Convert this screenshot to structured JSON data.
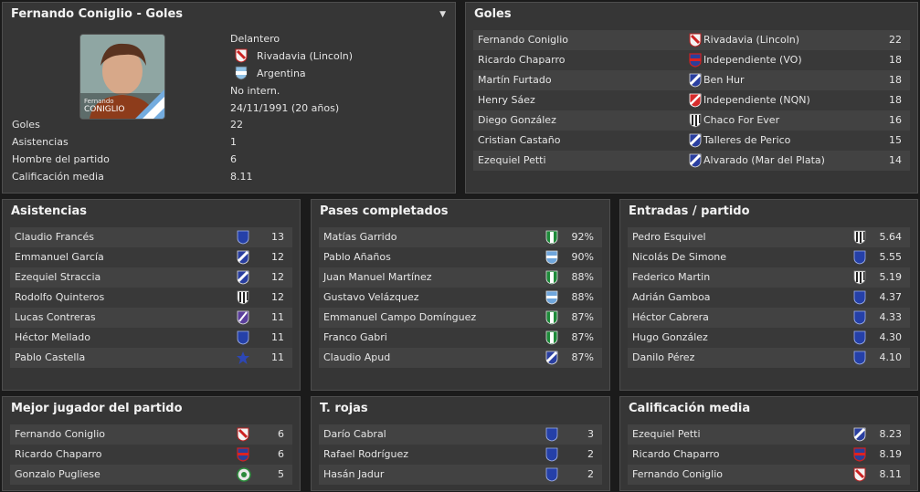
{
  "profile": {
    "title": "Fernando Coniglio - Goles",
    "photo_caption_1": "Fernando",
    "photo_caption_2": "CONIGLIO",
    "position": "Delantero",
    "club": "Rivadavia (Lincoln)",
    "nation": "Argentina",
    "intl": "No intern.",
    "dob": "24/11/1991 (20 años)",
    "stats": [
      {
        "label": "Goles",
        "value": "22"
      },
      {
        "label": "Asistencias",
        "value": "1"
      },
      {
        "label": "Hombre del partido",
        "value": "6"
      },
      {
        "label": "Calificación media",
        "value": "8.11"
      }
    ]
  },
  "goles": {
    "title": "Goles",
    "rows": [
      {
        "player": "Fernando Coniglio",
        "club": "Rivadavia (Lincoln)",
        "value": "22",
        "badge": "red-diagonal"
      },
      {
        "player": "Ricardo Chaparro",
        "club": "Independiente (VO)",
        "value": "18",
        "badge": "red-blue"
      },
      {
        "player": "Martín Furtado",
        "club": "Ben Hur",
        "value": "18",
        "badge": "blue-sash"
      },
      {
        "player": "Henry Sáez",
        "club": "Independiente (NQN)",
        "value": "18",
        "badge": "red-white"
      },
      {
        "player": "Diego González",
        "club": "Chaco For Ever",
        "value": "16",
        "badge": "stripes"
      },
      {
        "player": "Cristian Castaño",
        "club": "Talleres de Perico",
        "value": "15",
        "badge": "blue-sash"
      },
      {
        "player": "Ezequiel Petti",
        "club": "Alvarado (Mar del Plata)",
        "value": "14",
        "badge": "blue-sash"
      }
    ]
  },
  "asistencias": {
    "title": "Asistencias",
    "rows": [
      {
        "player": "Claudio Francés",
        "value": "13",
        "badge": "blue-shield"
      },
      {
        "player": "Emmanuel García",
        "value": "12",
        "badge": "blue-sash"
      },
      {
        "player": "Ezequiel Straccia",
        "value": "12",
        "badge": "blue-sash"
      },
      {
        "player": "Rodolfo Quinteros",
        "value": "12",
        "badge": "stripes"
      },
      {
        "player": "Lucas Contreras",
        "value": "11",
        "badge": "purple"
      },
      {
        "player": "Héctor Mellado",
        "value": "11",
        "badge": "blue-shield"
      },
      {
        "player": "Pablo Castella",
        "value": "11",
        "badge": "star"
      }
    ]
  },
  "pases": {
    "title": "Pases completados",
    "rows": [
      {
        "player": "Matías Garrido",
        "value": "92%",
        "badge": "green"
      },
      {
        "player": "Pablo Añaños",
        "value": "90%",
        "badge": "light-blue"
      },
      {
        "player": "Juan Manuel Martínez",
        "value": "88%",
        "badge": "green"
      },
      {
        "player": "Gustavo Velázquez",
        "value": "88%",
        "badge": "light-blue"
      },
      {
        "player": "Emmanuel Campo Domínguez",
        "value": "87%",
        "badge": "green"
      },
      {
        "player": "Franco Gabri",
        "value": "87%",
        "badge": "green"
      },
      {
        "player": "Claudio Apud",
        "value": "87%",
        "badge": "blue-sash"
      }
    ]
  },
  "entradas": {
    "title": "Entradas / partido",
    "rows": [
      {
        "player": "Pedro Esquivel",
        "value": "5.64",
        "badge": "stripes"
      },
      {
        "player": "Nicolás De Simone",
        "value": "5.55",
        "badge": "blue-shield"
      },
      {
        "player": "Federico Martin",
        "value": "5.19",
        "badge": "stripes"
      },
      {
        "player": "Adrián Gamboa",
        "value": "4.37",
        "badge": "blue-shield"
      },
      {
        "player": "Héctor Cabrera",
        "value": "4.33",
        "badge": "blue-shield"
      },
      {
        "player": "Hugo González",
        "value": "4.30",
        "badge": "blue-shield"
      },
      {
        "player": "Danilo Pérez",
        "value": "4.10",
        "badge": "blue-shield"
      }
    ]
  },
  "mejor": {
    "title": "Mejor jugador del partido",
    "rows": [
      {
        "player": "Fernando Coniglio",
        "value": "6",
        "badge": "red-diagonal"
      },
      {
        "player": "Ricardo Chaparro",
        "value": "6",
        "badge": "red-blue"
      },
      {
        "player": "Gonzalo Pugliese",
        "value": "5",
        "badge": "round-green"
      }
    ]
  },
  "rojas": {
    "title": "T. rojas",
    "rows": [
      {
        "player": "Darío Cabral",
        "value": "3",
        "badge": "blue-shield"
      },
      {
        "player": "Rafael Rodríguez",
        "value": "2",
        "badge": "blue-shield"
      },
      {
        "player": "Hasán Jadur",
        "value": "2",
        "badge": "blue-shield"
      }
    ]
  },
  "calificacion": {
    "title": "Calificación media",
    "rows": [
      {
        "player": "Ezequiel Petti",
        "value": "8.23",
        "badge": "blue-sash"
      },
      {
        "player": "Ricardo Chaparro",
        "value": "8.19",
        "badge": "red-blue"
      },
      {
        "player": "Fernando Coniglio",
        "value": "8.11",
        "badge": "red-diagonal"
      }
    ]
  }
}
